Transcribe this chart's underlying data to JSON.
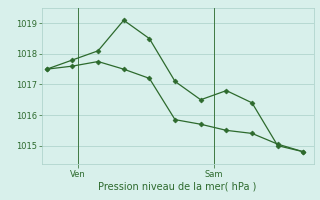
{
  "line1_x": [
    0,
    1,
    2,
    3,
    4,
    5,
    6,
    7,
    8,
    9,
    10
  ],
  "line1_y": [
    1017.5,
    1017.8,
    1018.1,
    1019.1,
    1018.5,
    1017.1,
    1016.5,
    1016.8,
    1016.4,
    1015.0,
    1014.8
  ],
  "line2_x": [
    0,
    1,
    2,
    3,
    4,
    5,
    6,
    7,
    8,
    9,
    10
  ],
  "line2_y": [
    1017.5,
    1017.6,
    1017.75,
    1017.5,
    1017.2,
    1015.85,
    1015.7,
    1015.5,
    1015.4,
    1015.05,
    1014.8
  ],
  "ven_x": 1.2,
  "sam_x": 6.5,
  "yticks": [
    1015,
    1016,
    1017,
    1018,
    1019
  ],
  "ylim_min": 1014.4,
  "ylim_max": 1019.5,
  "xlim_min": -0.2,
  "xlim_max": 10.4,
  "line_color": "#2d6a2d",
  "bg_color": "#d8f0eb",
  "grid_color": "#aacfc8",
  "xlabel": "Pression niveau de la mer( hPa )",
  "xlabel_color": "#2d6a2d",
  "tick_color": "#2d6a2d",
  "tick_fontsize": 6,
  "xlabel_fontsize": 7
}
